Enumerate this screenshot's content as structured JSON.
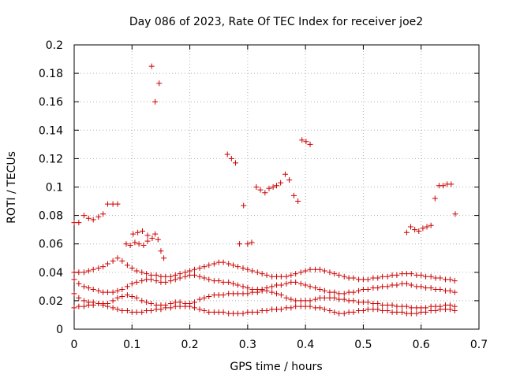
{
  "chart_data": {
    "type": "scatter",
    "title": "Day 086 of 2023, Rate Of TEC Index for receiver joe2",
    "xlabel": "GPS time / hours",
    "ylabel": "ROTI / TECUs",
    "xlim": [
      0,
      0.7
    ],
    "ylim": [
      0,
      0.2
    ],
    "xticks": [
      "0",
      "0.1",
      "0.2",
      "0.3",
      "0.4",
      "0.5",
      "0.6",
      "0.7"
    ],
    "yticks": [
      "0",
      "0.02",
      "0.04",
      "0.06",
      "0.08",
      "0.1",
      "0.12",
      "0.14",
      "0.16",
      "0.18",
      "0.2"
    ],
    "grid": true,
    "marker": "+",
    "color": "#cc0000",
    "series": [
      {
        "x": [
          0.0,
          0.008,
          0.017,
          0.025,
          0.033,
          0.042,
          0.05,
          0.058,
          0.067,
          0.075,
          0.083,
          0.092,
          0.1,
          0.108,
          0.117,
          0.125,
          0.133,
          0.142,
          0.15,
          0.158,
          0.167,
          0.175,
          0.183,
          0.192,
          0.2,
          0.208,
          0.217,
          0.225,
          0.233,
          0.242,
          0.25,
          0.258,
          0.267,
          0.275,
          0.283,
          0.292,
          0.3,
          0.308,
          0.317,
          0.325,
          0.333,
          0.342,
          0.35,
          0.358,
          0.367,
          0.375,
          0.383,
          0.392,
          0.4,
          0.408,
          0.417,
          0.425,
          0.433,
          0.442,
          0.45,
          0.458,
          0.467,
          0.475,
          0.483,
          0.492,
          0.5,
          0.508,
          0.517,
          0.525,
          0.533,
          0.542,
          0.55,
          0.558,
          0.567,
          0.575,
          0.583,
          0.592,
          0.6,
          0.608,
          0.617,
          0.625,
          0.633,
          0.642,
          0.65,
          0.658
        ],
        "y": [
          0.015,
          0.016,
          0.016,
          0.017,
          0.017,
          0.018,
          0.017,
          0.016,
          0.015,
          0.014,
          0.013,
          0.013,
          0.012,
          0.012,
          0.012,
          0.013,
          0.013,
          0.014,
          0.014,
          0.015,
          0.015,
          0.016,
          0.016,
          0.016,
          0.016,
          0.015,
          0.014,
          0.013,
          0.012,
          0.012,
          0.012,
          0.012,
          0.011,
          0.011,
          0.011,
          0.011,
          0.012,
          0.012,
          0.012,
          0.013,
          0.013,
          0.014,
          0.014,
          0.014,
          0.015,
          0.015,
          0.016,
          0.016,
          0.016,
          0.016,
          0.015,
          0.015,
          0.014,
          0.013,
          0.012,
          0.011,
          0.011,
          0.012,
          0.012,
          0.013,
          0.013,
          0.014,
          0.014,
          0.014,
          0.013,
          0.013,
          0.012,
          0.012,
          0.012,
          0.011,
          0.011,
          0.011,
          0.012,
          0.012,
          0.013,
          0.013,
          0.014,
          0.014,
          0.014,
          0.013
        ]
      },
      {
        "x": [
          0.0,
          0.008,
          0.017,
          0.025,
          0.033,
          0.042,
          0.05,
          0.058,
          0.067,
          0.075,
          0.083,
          0.092,
          0.1,
          0.108,
          0.117,
          0.125,
          0.133,
          0.142,
          0.15,
          0.158,
          0.167,
          0.175,
          0.183,
          0.192,
          0.2,
          0.208,
          0.217,
          0.225,
          0.233,
          0.242,
          0.25,
          0.258,
          0.267,
          0.275,
          0.283,
          0.292,
          0.3,
          0.308,
          0.317,
          0.325,
          0.333,
          0.342,
          0.35,
          0.358,
          0.367,
          0.375,
          0.383,
          0.392,
          0.4,
          0.408,
          0.417,
          0.425,
          0.433,
          0.442,
          0.45,
          0.458,
          0.467,
          0.475,
          0.483,
          0.492,
          0.5,
          0.508,
          0.517,
          0.525,
          0.533,
          0.542,
          0.55,
          0.558,
          0.567,
          0.575,
          0.583,
          0.592,
          0.6,
          0.608,
          0.617,
          0.625,
          0.633,
          0.642,
          0.65,
          0.658
        ],
        "y": [
          0.025,
          0.022,
          0.02,
          0.019,
          0.019,
          0.018,
          0.018,
          0.018,
          0.02,
          0.022,
          0.023,
          0.024,
          0.023,
          0.022,
          0.02,
          0.019,
          0.018,
          0.017,
          0.017,
          0.017,
          0.018,
          0.019,
          0.019,
          0.018,
          0.018,
          0.019,
          0.021,
          0.022,
          0.023,
          0.024,
          0.024,
          0.024,
          0.025,
          0.025,
          0.025,
          0.025,
          0.025,
          0.026,
          0.026,
          0.027,
          0.027,
          0.026,
          0.025,
          0.024,
          0.022,
          0.021,
          0.02,
          0.02,
          0.02,
          0.02,
          0.021,
          0.022,
          0.022,
          0.022,
          0.022,
          0.021,
          0.021,
          0.02,
          0.02,
          0.019,
          0.019,
          0.019,
          0.018,
          0.018,
          0.017,
          0.017,
          0.017,
          0.016,
          0.016,
          0.016,
          0.015,
          0.015,
          0.015,
          0.015,
          0.016,
          0.016,
          0.016,
          0.017,
          0.017,
          0.016
        ]
      },
      {
        "x": [
          0.0,
          0.008,
          0.017,
          0.025,
          0.033,
          0.042,
          0.05,
          0.058,
          0.067,
          0.075,
          0.083,
          0.092,
          0.1,
          0.108,
          0.117,
          0.125,
          0.133,
          0.142,
          0.15,
          0.158,
          0.167,
          0.175,
          0.183,
          0.192,
          0.2,
          0.208,
          0.217,
          0.225,
          0.233,
          0.242,
          0.25,
          0.258,
          0.267,
          0.275,
          0.283,
          0.292,
          0.3,
          0.308,
          0.317,
          0.325,
          0.333,
          0.342,
          0.35,
          0.358,
          0.367,
          0.375,
          0.383,
          0.392,
          0.4,
          0.408,
          0.417,
          0.425,
          0.433,
          0.442,
          0.45,
          0.458,
          0.467,
          0.475,
          0.483,
          0.492,
          0.5,
          0.508,
          0.517,
          0.525,
          0.533,
          0.542,
          0.55,
          0.558,
          0.567,
          0.575,
          0.583,
          0.592,
          0.6,
          0.608,
          0.617,
          0.625,
          0.633,
          0.642,
          0.65,
          0.658
        ],
        "y": [
          0.035,
          0.032,
          0.03,
          0.029,
          0.028,
          0.027,
          0.026,
          0.026,
          0.026,
          0.027,
          0.028,
          0.03,
          0.032,
          0.033,
          0.034,
          0.035,
          0.035,
          0.034,
          0.033,
          0.033,
          0.034,
          0.035,
          0.036,
          0.037,
          0.038,
          0.038,
          0.037,
          0.036,
          0.035,
          0.034,
          0.034,
          0.033,
          0.033,
          0.032,
          0.031,
          0.03,
          0.029,
          0.028,
          0.028,
          0.028,
          0.029,
          0.03,
          0.031,
          0.031,
          0.032,
          0.033,
          0.033,
          0.032,
          0.031,
          0.03,
          0.029,
          0.028,
          0.027,
          0.026,
          0.026,
          0.025,
          0.025,
          0.026,
          0.026,
          0.027,
          0.028,
          0.028,
          0.029,
          0.029,
          0.03,
          0.03,
          0.031,
          0.031,
          0.032,
          0.032,
          0.031,
          0.03,
          0.03,
          0.029,
          0.029,
          0.028,
          0.028,
          0.027,
          0.027,
          0.026
        ]
      },
      {
        "x": [
          0.0,
          0.008,
          0.017,
          0.025,
          0.033,
          0.042,
          0.05,
          0.058,
          0.067,
          0.075,
          0.083,
          0.092,
          0.1,
          0.108,
          0.117,
          0.125,
          0.133,
          0.142,
          0.15,
          0.158,
          0.167,
          0.175,
          0.183,
          0.192,
          0.2,
          0.208,
          0.217,
          0.225,
          0.233,
          0.242,
          0.25,
          0.258,
          0.267,
          0.275,
          0.283,
          0.292,
          0.3,
          0.308,
          0.317,
          0.325,
          0.333,
          0.342,
          0.35,
          0.358,
          0.367,
          0.375,
          0.383,
          0.392,
          0.4,
          0.408,
          0.417,
          0.425,
          0.433,
          0.442,
          0.45,
          0.458,
          0.467,
          0.475,
          0.483,
          0.492,
          0.5,
          0.508,
          0.517,
          0.525,
          0.533,
          0.542,
          0.55,
          0.558,
          0.567,
          0.575,
          0.583,
          0.592,
          0.6,
          0.608,
          0.617,
          0.625,
          0.633,
          0.642,
          0.65,
          0.658
        ],
        "y": [
          0.04,
          0.04,
          0.04,
          0.041,
          0.042,
          0.043,
          0.044,
          0.046,
          0.048,
          0.05,
          0.048,
          0.045,
          0.043,
          0.041,
          0.04,
          0.039,
          0.038,
          0.038,
          0.037,
          0.037,
          0.037,
          0.038,
          0.039,
          0.04,
          0.041,
          0.042,
          0.043,
          0.044,
          0.045,
          0.046,
          0.047,
          0.047,
          0.046,
          0.045,
          0.044,
          0.043,
          0.042,
          0.041,
          0.04,
          0.039,
          0.038,
          0.037,
          0.037,
          0.037,
          0.037,
          0.038,
          0.039,
          0.04,
          0.041,
          0.042,
          0.042,
          0.042,
          0.041,
          0.04,
          0.039,
          0.038,
          0.037,
          0.036,
          0.036,
          0.035,
          0.035,
          0.035,
          0.036,
          0.036,
          0.037,
          0.037,
          0.038,
          0.038,
          0.039,
          0.039,
          0.039,
          0.038,
          0.038,
          0.037,
          0.037,
          0.036,
          0.036,
          0.035,
          0.035,
          0.034
        ]
      },
      {
        "x": [
          0.09,
          0.097,
          0.105,
          0.112,
          0.12,
          0.127,
          0.135,
          0.14,
          0.145,
          0.15,
          0.155
        ],
        "y": [
          0.06,
          0.059,
          0.061,
          0.06,
          0.059,
          0.062,
          0.064,
          0.067,
          0.063,
          0.055,
          0.05
        ]
      },
      {
        "x": [
          0.0,
          0.008,
          0.017,
          0.025,
          0.033,
          0.042,
          0.05,
          0.058,
          0.067,
          0.075
        ],
        "y": [
          0.075,
          0.075,
          0.08,
          0.078,
          0.077,
          0.079,
          0.081,
          0.088,
          0.088,
          0.088
        ]
      },
      {
        "x": [
          0.102,
          0.11,
          0.118,
          0.127,
          0.134,
          0.14,
          0.147
        ],
        "y": [
          0.067,
          0.068,
          0.069,
          0.066,
          0.185,
          0.16,
          0.173
        ]
      },
      {
        "x": [
          0.265,
          0.272,
          0.279,
          0.286,
          0.293,
          0.3,
          0.307,
          0.315,
          0.322,
          0.33,
          0.337,
          0.344,
          0.35,
          0.357,
          0.365,
          0.372,
          0.38,
          0.387,
          0.394,
          0.401,
          0.408
        ],
        "y": [
          0.123,
          0.12,
          0.117,
          0.06,
          0.087,
          0.06,
          0.061,
          0.1,
          0.098,
          0.096,
          0.099,
          0.1,
          0.101,
          0.103,
          0.109,
          0.105,
          0.094,
          0.09,
          0.133,
          0.132,
          0.13
        ]
      },
      {
        "x": [
          0.575,
          0.582,
          0.589,
          0.596,
          0.603,
          0.61,
          0.617,
          0.624,
          0.631,
          0.638,
          0.645,
          0.652,
          0.659
        ],
        "y": [
          0.068,
          0.072,
          0.07,
          0.069,
          0.071,
          0.072,
          0.073,
          0.092,
          0.101,
          0.101,
          0.102,
          0.102,
          0.081
        ]
      }
    ]
  }
}
